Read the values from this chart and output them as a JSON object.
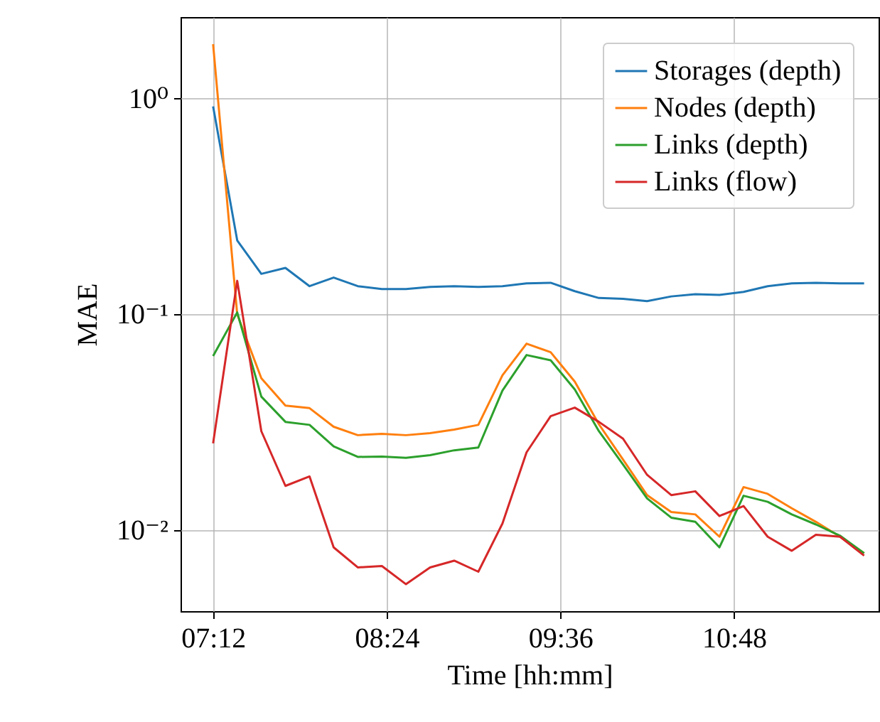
{
  "chart_data": {
    "type": "line",
    "xlabel": "Time [hh:mm]",
    "ylabel": "MAE",
    "log": "y",
    "grid": true,
    "legend": "top right",
    "x": [
      7.2,
      7.3667,
      7.5333,
      7.7,
      7.8667,
      8.0333,
      8.2,
      8.3667,
      8.5333,
      8.7,
      8.8667,
      9.0333,
      9.2,
      9.3667,
      9.5333,
      9.7,
      9.8667,
      10.0333,
      10.2,
      10.3667,
      10.5333,
      10.7,
      10.8667,
      11.0333,
      11.2,
      11.3667,
      11.5333,
      11.7
    ],
    "xlim": [
      6.975,
      11.8
    ],
    "xticks": [
      {
        "value": 7.2,
        "label": "07:12"
      },
      {
        "value": 8.4,
        "label": "08:24"
      },
      {
        "value": 9.6,
        "label": "09:36"
      },
      {
        "value": 10.8,
        "label": "10:48"
      }
    ],
    "ylim": [
      0.0042,
      2.39
    ],
    "yticks": [
      {
        "value": 0.01,
        "label": "10⁻²"
      },
      {
        "value": 0.1,
        "label": "10⁻¹"
      },
      {
        "value": 1,
        "label": "10⁰"
      }
    ],
    "series": [
      {
        "name": "Storages (depth)",
        "color": "#1f77b4",
        "values": [
          0.92,
          0.22,
          0.154,
          0.164,
          0.135,
          0.148,
          0.135,
          0.131,
          0.131,
          0.134,
          0.135,
          0.134,
          0.135,
          0.139,
          0.14,
          0.128,
          0.119,
          0.118,
          0.115,
          0.121,
          0.124,
          0.123,
          0.127,
          0.135,
          0.139,
          0.14,
          0.139,
          0.139
        ]
      },
      {
        "name": "Nodes (depth)",
        "color": "#ff7f0e",
        "values": [
          1.79,
          0.1,
          0.0505,
          0.0377,
          0.0367,
          0.0301,
          0.0275,
          0.0279,
          0.0275,
          0.0281,
          0.0292,
          0.0307,
          0.0521,
          0.0731,
          0.0667,
          0.0487,
          0.0309,
          0.0212,
          0.0145,
          0.0121,
          0.0118,
          0.0093,
          0.0158,
          0.0147,
          0.0126,
          0.0109,
          0.0093,
          0.0078
        ]
      },
      {
        "name": "Links (depth)",
        "color": "#2ca02c",
        "values": [
          0.064,
          0.102,
          0.0415,
          0.0317,
          0.0307,
          0.0244,
          0.0218,
          0.0219,
          0.0216,
          0.0222,
          0.0234,
          0.0241,
          0.0443,
          0.0647,
          0.0612,
          0.0448,
          0.0287,
          0.0201,
          0.014,
          0.0114,
          0.0109,
          0.0083,
          0.0144,
          0.0135,
          0.0118,
          0.0106,
          0.0094,
          0.0078
        ]
      },
      {
        "name": "Links (flow)",
        "color": "#d62728",
        "values": [
          0.0252,
          0.143,
          0.0287,
          0.016,
          0.0177,
          0.0083,
          0.0067,
          0.0068,
          0.0056,
          0.0067,
          0.0072,
          0.0064,
          0.0107,
          0.0229,
          0.0337,
          0.0369,
          0.0317,
          0.0265,
          0.018,
          0.0145,
          0.0151,
          0.0116,
          0.0129,
          0.0093,
          0.008,
          0.0095,
          0.0093,
          0.0076
        ]
      }
    ]
  }
}
